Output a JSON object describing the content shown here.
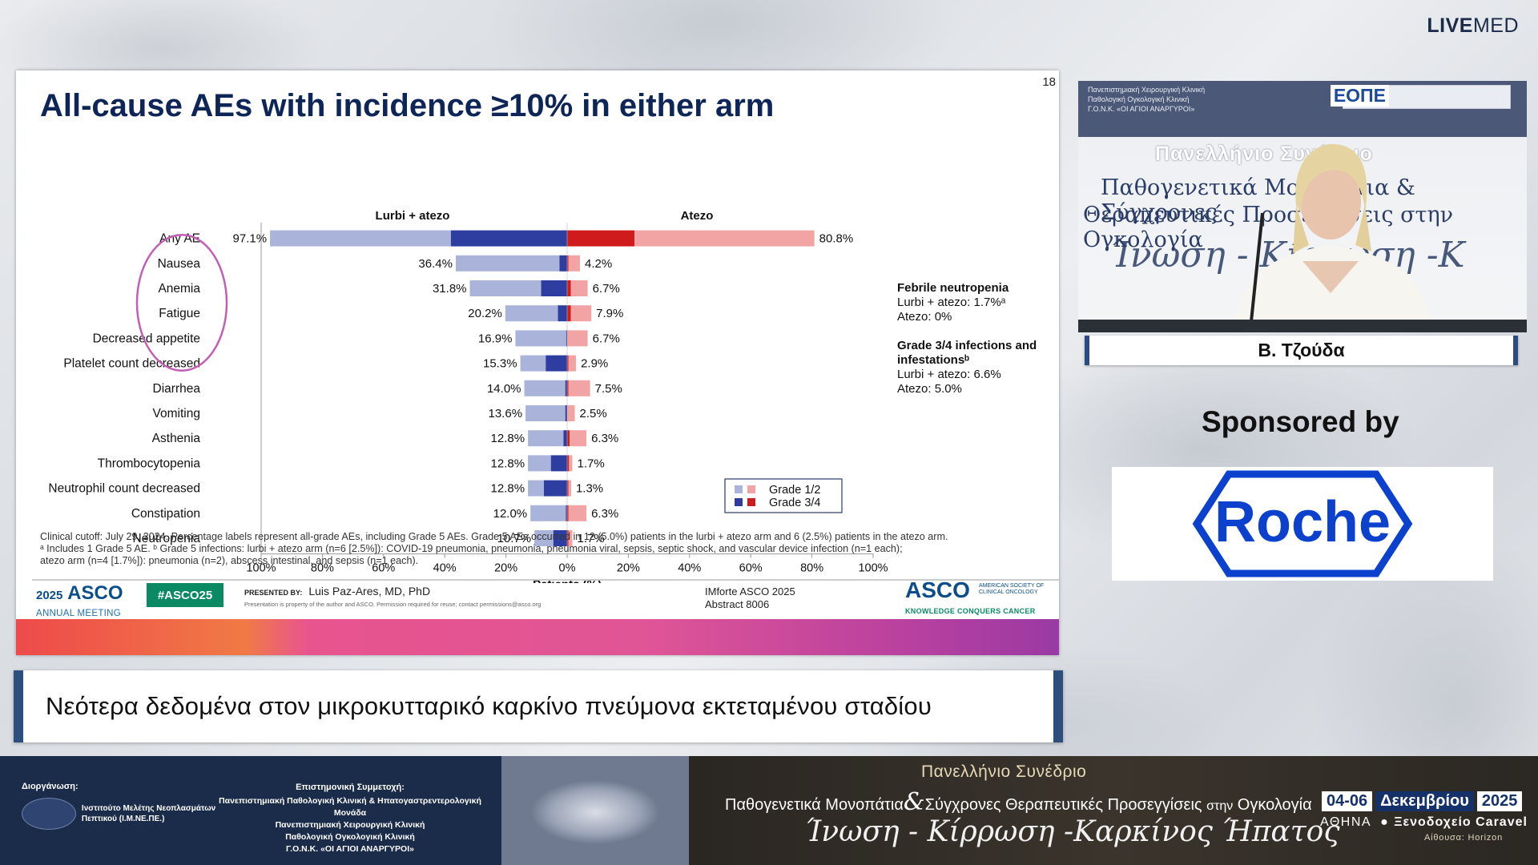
{
  "brand": {
    "bold": "LIVE",
    "light": "MED"
  },
  "slide": {
    "number": "18",
    "title": "All-cause AEs with incidence ≥10% in either arm",
    "side_notes": [
      {
        "heading": "Febrile neutropenia",
        "lines": [
          "Lurbi + atezo: 1.7%ᵃ",
          "Atezo: 0%"
        ]
      },
      {
        "heading": "Grade 3/4 infections and infestationsᵇ",
        "lines": [
          "Lurbi + atezo: 6.6%",
          "Atezo: 5.0%"
        ]
      }
    ],
    "footnote": [
      "Clinical cutoff: July 29, 2024. Percentage labels represent all-grade AEs, including Grade 5 AEs. Grade 5 AEs occurred in 12 (5.0%) patients in the lurbi + atezo arm and 6 (2.5%) patients in the atezo arm.",
      "ᵃ Includes 1 Grade 5 AE. ᵇ Grade 5 infections: lurbi + atezo arm (n=6 [2.5%]): COVID-19 pneumonia, pneumonia, pneumonia viral, sepsis, septic shock, and vascular device infection (n=1 each);",
      "atezo arm (n=4 [1.7%]): pneumonia (n=2), abscess intestinal, and sepsis (n=1 each)."
    ],
    "footer": {
      "asco_year": "2025",
      "asco_word": "ASCO",
      "asco_meeting": "ANNUAL MEETING",
      "hashtag": "#ASCO25",
      "presented_by_label": "PRESENTED BY:",
      "presenter": "Luis Paz-Ares, MD, PhD",
      "presenter_note": "Presentation is property of the author and ASCO. Permission required for reuse; contact permissions@asco.org",
      "abstract_line1": "IMforte ASCO 2025",
      "abstract_line2": "Abstract 8006",
      "asco_society": "AMERICAN SOCIETY OF CLINICAL ONCOLOGY",
      "asco_tagline": "KNOWLEDGE CONQUERS CANCER"
    }
  },
  "chart_data": {
    "type": "bar",
    "orientation": "horizontal-diverging-stacked",
    "xlabel": "Patients (%)",
    "xlim": [
      -100,
      100
    ],
    "xticks": [
      "100%",
      "80%",
      "60%",
      "40%",
      "20%",
      "0%",
      "20%",
      "40%",
      "60%",
      "80%",
      "100%"
    ],
    "arm_left": "Lurbi + atezo",
    "arm_right": "Atezo",
    "legend": [
      "Grade 1/2",
      "Grade 3/4"
    ],
    "categories": [
      "Any AE",
      "Nausea",
      "Anemia",
      "Fatigue",
      "Decreased appetite",
      "Platelet count decreased",
      "Diarrhea",
      "Vomiting",
      "Asthenia",
      "Thrombocytopenia",
      "Neutrophil count decreased",
      "Constipation",
      "Neutropenia"
    ],
    "left_total": [
      97.1,
      36.4,
      31.8,
      20.2,
      16.9,
      15.3,
      14.0,
      13.6,
      12.8,
      12.8,
      12.8,
      12.0,
      10.7
    ],
    "left_grade34": [
      38.0,
      2.5,
      8.5,
      3.0,
      0.3,
      7.0,
      0.6,
      0.6,
      1.2,
      5.3,
      7.6,
      0.4,
      4.5
    ],
    "left_labels": [
      "97.1%",
      "36.4%",
      "31.8%",
      "20.2%",
      "16.9%",
      "15.3%",
      "14.0%",
      "13.6%",
      "12.8%",
      "12.8%",
      "12.8%",
      "12.0%",
      "10.7%"
    ],
    "right_total": [
      80.8,
      4.2,
      6.7,
      7.9,
      6.7,
      2.9,
      7.5,
      2.5,
      6.3,
      1.7,
      1.3,
      6.3,
      1.7
    ],
    "right_grade34": [
      22.0,
      0.4,
      1.2,
      1.2,
      0.0,
      0.4,
      0.4,
      0.0,
      0.8,
      0.6,
      0.4,
      0.4,
      0.4
    ],
    "right_labels": [
      "80.8%",
      "4.2%",
      "6.7%",
      "7.9%",
      "6.7%",
      "2.9%",
      "7.5%",
      "2.5%",
      "6.3%",
      "1.7%",
      "1.3%",
      "6.3%",
      "1.7%"
    ],
    "colors": {
      "left_g12": "#aab4da",
      "left_g34": "#2d3ea0",
      "right_g12": "#f2a3a3",
      "right_g34": "#cf1b1b",
      "highlight": "#c25fb5"
    },
    "highlighted": [
      "Nausea",
      "Anemia",
      "Fatigue"
    ]
  },
  "video": {
    "org_lines": [
      "Πανεπιστημιακή Χειρουργική Κλινική",
      "Παθολογική Ογκολογική Κλινική",
      "Γ.Ο.Ν.Κ. «ΟΙ ΑΓΙΟΙ ΑΝΑΡΓΥΡΟΙ»"
    ],
    "eope": "ΕΟΠΕ",
    "banner_line1": "Πανελλήνιο Συνέδριο",
    "banner_line2": "Παθογενετικά Μονοπάτια & Σύγχρονες",
    "banner_line3": "Θεραπευτικές Προσεγγίσεις στην Ογκολογία",
    "banner_line4": "Ίνωση - Κίρρωση -Κ"
  },
  "speaker_name": "Β. Τζούδα",
  "sponsor": {
    "label": "Sponsored by",
    "name": "Roche"
  },
  "subtitle": "Νεότερα δεδομένα στον μικροκυτταρικό καρκίνο πνεύμονα εκτεταμένου σταδίου",
  "bottom_banner": {
    "organizer_label": "Διοργάνωση:",
    "organizer_name_1": "Ινστιτούτο Μελέτης Νεοπλασμάτων",
    "organizer_name_2": "Πεπτικού (Ι.Μ.ΝΕ.ΠΕ.)",
    "sci_label": "Επιστημονική Συμμετοχή:",
    "sci_lines": [
      "Πανεπιστημιακή Παθολογική Κλινική & Ηπατογαστρεντερολογική Μονάδα",
      "Πανεπιστημιακή Χειρουργική Κλινική",
      "Παθολογική Ογκολογική Κλινική",
      "Γ.Ο.Ν.Κ. «ΟΙ ΑΓΙΟΙ ΑΝΑΡΓΥΡΟΙ»"
    ],
    "conf_title": "Πανελλήνιο Συνέδριο",
    "conf_sub_a": "Παθογενετικά Μονοπάτια",
    "conf_amp": "&",
    "conf_sub_b": "Σύγχρονες Θεραπευτικές Προσεγγίσεις",
    "conf_sub_c": "στην",
    "conf_sub_d": "Ογκολογία",
    "conf_script": "Ίνωση - Κίρρωση -Καρκίνος Ήπατος",
    "date_days": "04-06",
    "date_month": "Δεκεμβρίου",
    "date_year": "2025",
    "city": "ΑΘΗΝΑ",
    "venue": "Ξενοδοχείο Caravel",
    "hall": "Αίθουσα: Horizon"
  }
}
